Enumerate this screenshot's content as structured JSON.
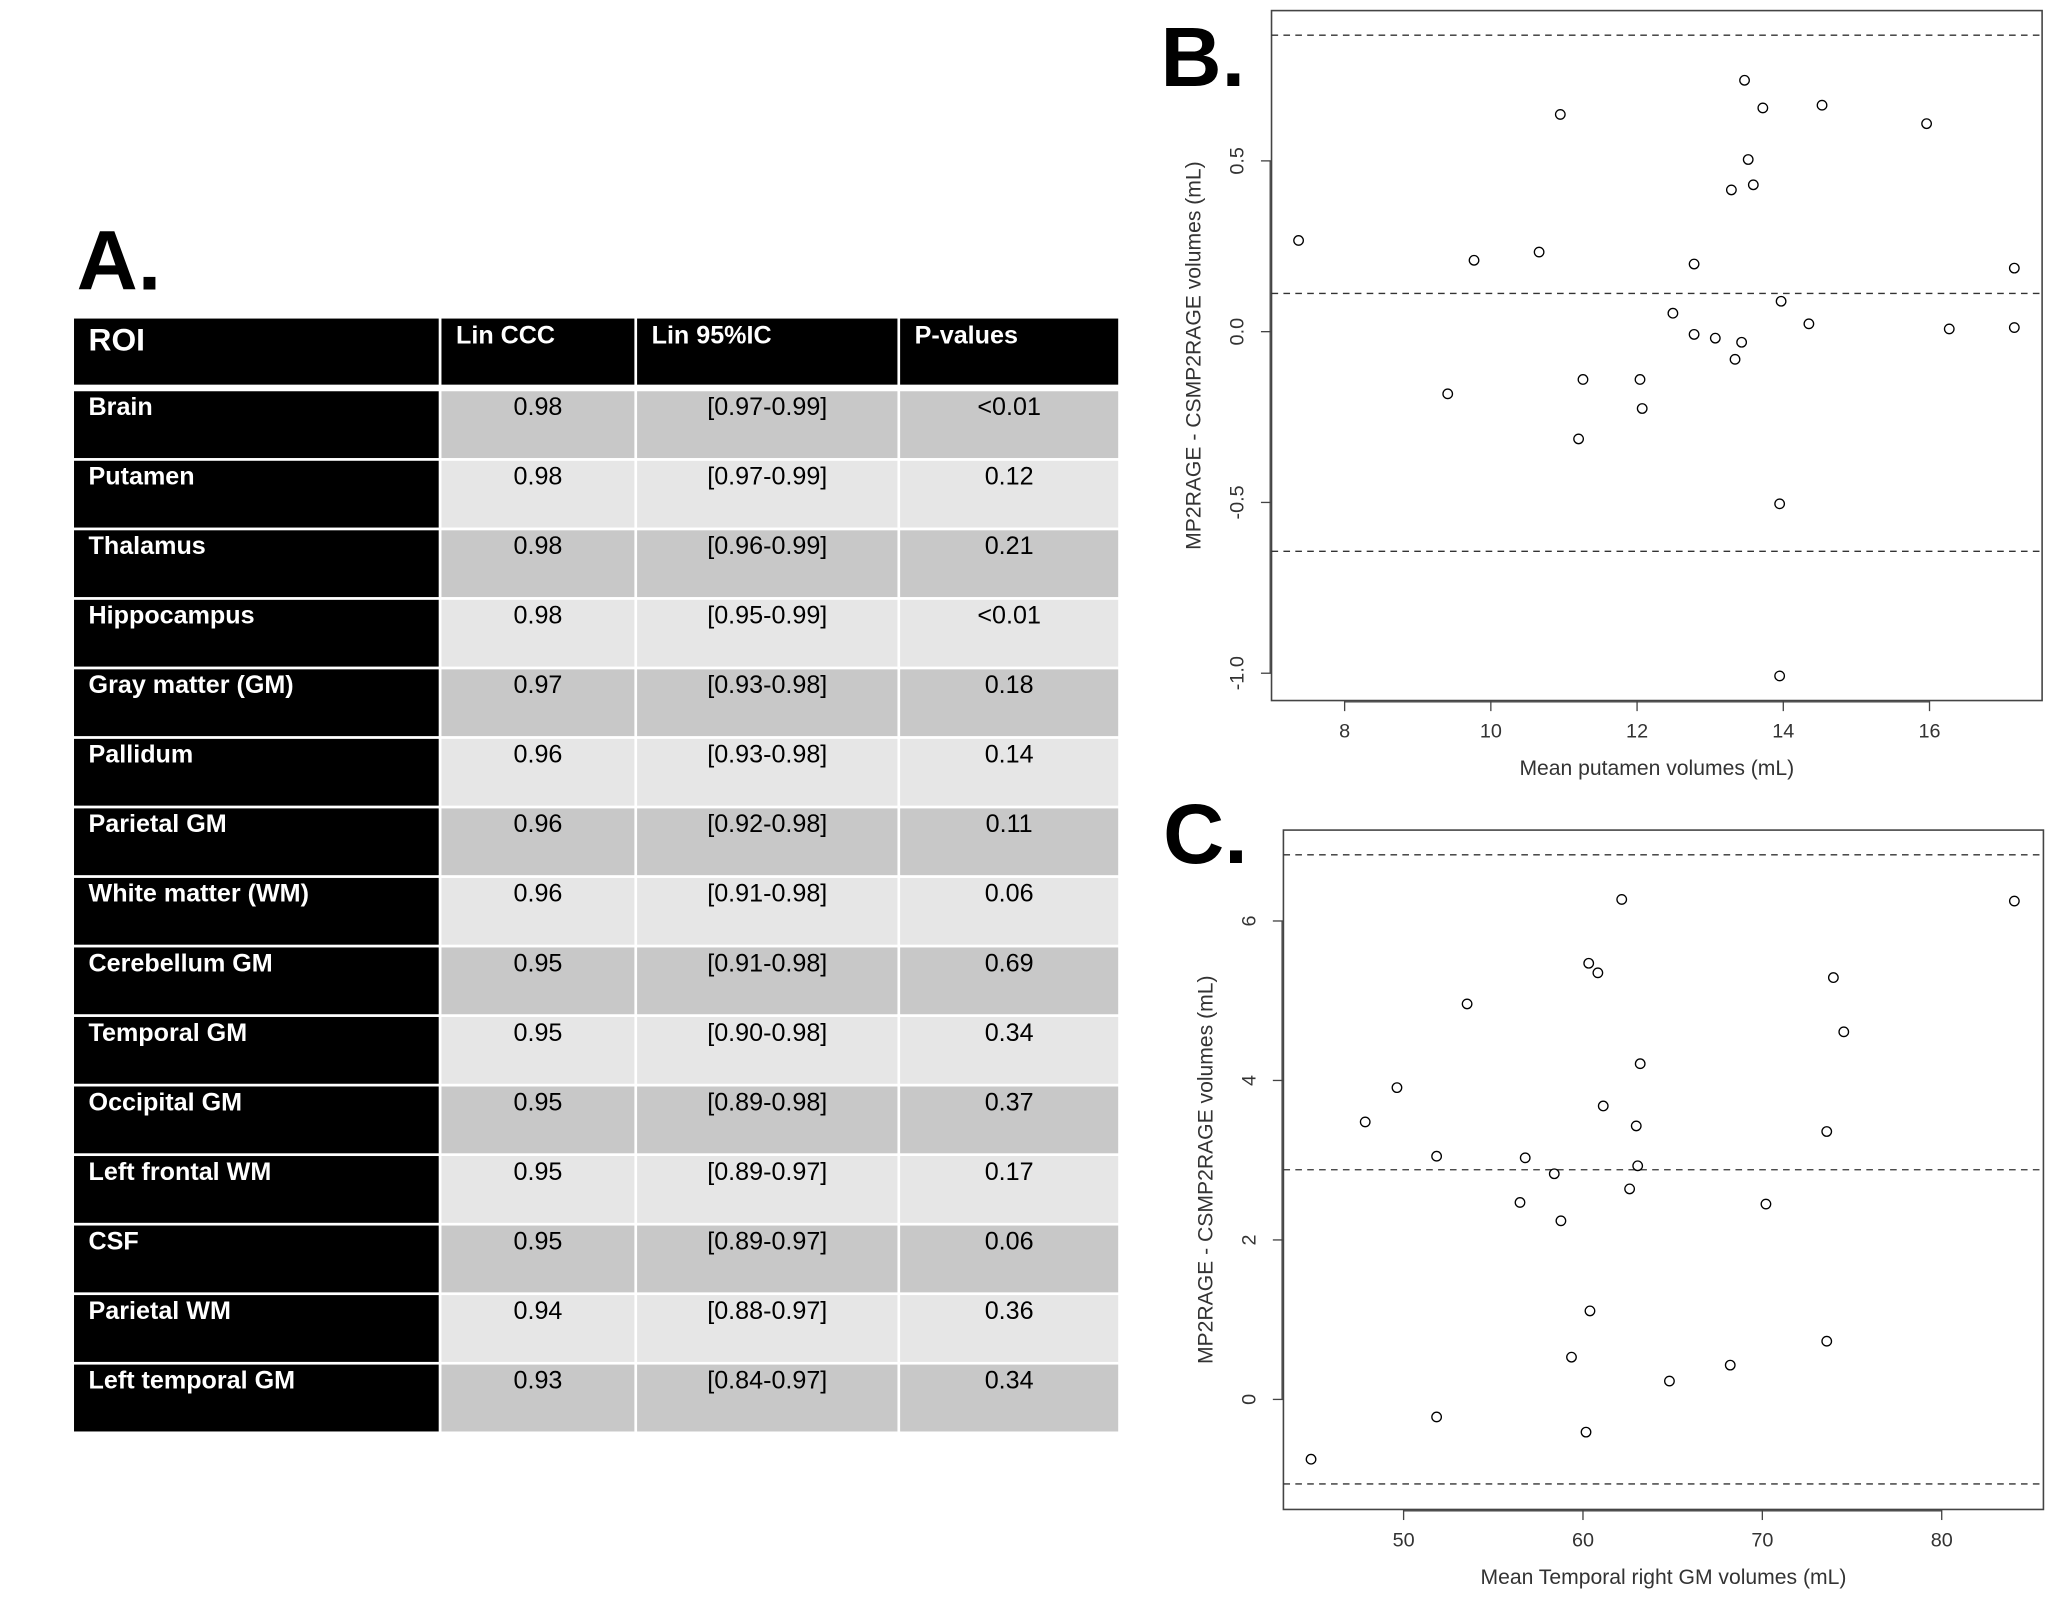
{
  "table": {
    "label": "A.",
    "header": [
      "ROI",
      "Lin CCC",
      "Lin 95%IC",
      "P-values"
    ],
    "rows": [
      [
        "Brain",
        "0.98",
        "[0.97-0.99]",
        "<0.01"
      ],
      [
        "Putamen",
        "0.98",
        "[0.97-0.99]",
        "0.12"
      ],
      [
        "Thalamus",
        "0.98",
        "[0.96-0.99]",
        "0.21"
      ],
      [
        "Hippocampus",
        "0.98",
        "[0.95-0.99]",
        "<0.01"
      ],
      [
        "Gray matter (GM)",
        "0.97",
        "[0.93-0.98]",
        "0.18"
      ],
      [
        "Pallidum",
        "0.96",
        "[0.93-0.98]",
        "0.14"
      ],
      [
        "Parietal GM",
        "0.96",
        "[0.92-0.98]",
        "0.11"
      ],
      [
        "White matter (WM)",
        "0.96",
        "[0.91-0.98]",
        "0.06"
      ],
      [
        "Cerebellum GM",
        "0.95",
        "[0.91-0.98]",
        "0.69"
      ],
      [
        "Temporal GM",
        "0.95",
        "[0.90-0.98]",
        "0.34"
      ],
      [
        "Occipital GM",
        "0.95",
        "[0.89-0.98]",
        "0.37"
      ],
      [
        "Left frontal WM",
        "0.95",
        "[0.89-0.97]",
        "0.17"
      ],
      [
        "CSF",
        "0.95",
        "[0.89-0.97]",
        "0.06"
      ],
      [
        "Parietal WM",
        "0.94",
        "[0.88-0.97]",
        "0.36"
      ],
      [
        "Left temporal GM",
        "0.93",
        "[0.84-0.97]",
        "0.34"
      ]
    ]
  },
  "chart_data": [
    {
      "type": "scatter",
      "label": "B.",
      "x_label": "Mean putamen volumes (mL)",
      "y_label": "MP2RAGE - CSMP2RAGE volumes (mL)",
      "x": [
        7.37,
        9.41,
        9.77,
        10.66,
        10.95,
        11.26,
        11.2,
        12.04,
        12.07,
        12.49,
        12.78,
        12.78,
        13.07,
        13.29,
        13.34,
        13.47,
        13.43,
        13.52,
        13.59,
        13.72,
        13.97,
        13.95,
        13.95,
        14.35,
        14.53,
        15.96,
        16.27,
        17.16,
        17.16
      ],
      "values": [
        0.267,
        -0.182,
        0.209,
        0.233,
        0.636,
        -0.14,
        -0.314,
        -0.14,
        -0.225,
        0.054,
        0.198,
        -0.008,
        -0.019,
        0.415,
        -0.081,
        0.736,
        -0.031,
        0.504,
        0.43,
        0.655,
        0.089,
        -0.504,
        -1.008,
        0.023,
        0.663,
        0.609,
        0.008,
        0.186,
        0.012
      ],
      "hlines": [
        0.868,
        0.112,
        -0.643
      ],
      "xlim": [
        7.0,
        17.54
      ],
      "ylim": [
        -1.08,
        0.94
      ],
      "xticks": [
        8,
        10,
        12,
        14,
        16
      ],
      "yticks": [
        {
          "value": -1,
          "label": "-1.0"
        },
        -0.5,
        {
          "value": 0,
          "label": "0.0"
        },
        0.5
      ],
      "color": "#000000"
    },
    {
      "type": "scatter",
      "label": "C.",
      "x_label": "Mean Temporal right GM volumes (mL)",
      "y_label": "MP2RAGE - CSMP2RAGE volumes (mL)",
      "x": [
        44.84,
        47.86,
        49.63,
        51.84,
        53.54,
        51.84,
        56.78,
        56.49,
        58.4,
        58.77,
        59.36,
        60.17,
        60.39,
        60.32,
        60.83,
        61.13,
        62.16,
        62.6,
        62.97,
        63.05,
        63.19,
        64.82,
        68.21,
        70.2,
        73.59,
        73.59,
        73.96,
        74.54,
        84.05
      ],
      "values": [
        -0.75,
        3.48,
        3.91,
        3.05,
        4.96,
        -0.22,
        3.03,
        2.47,
        2.83,
        2.24,
        0.53,
        -0.41,
        1.11,
        5.47,
        5.35,
        3.68,
        6.27,
        2.64,
        3.43,
        2.93,
        4.21,
        0.23,
        0.43,
        2.45,
        3.36,
        0.73,
        5.29,
        4.61,
        6.25
      ],
      "hlines": [
        6.83,
        2.88,
        -1.06
      ],
      "xlim": [
        43.3,
        85.67
      ],
      "ylim": [
        -1.38,
        7.14
      ],
      "xticks": [
        50,
        60,
        70,
        80
      ],
      "yticks": [
        0,
        2,
        4,
        6
      ],
      "color": "#000000"
    }
  ]
}
